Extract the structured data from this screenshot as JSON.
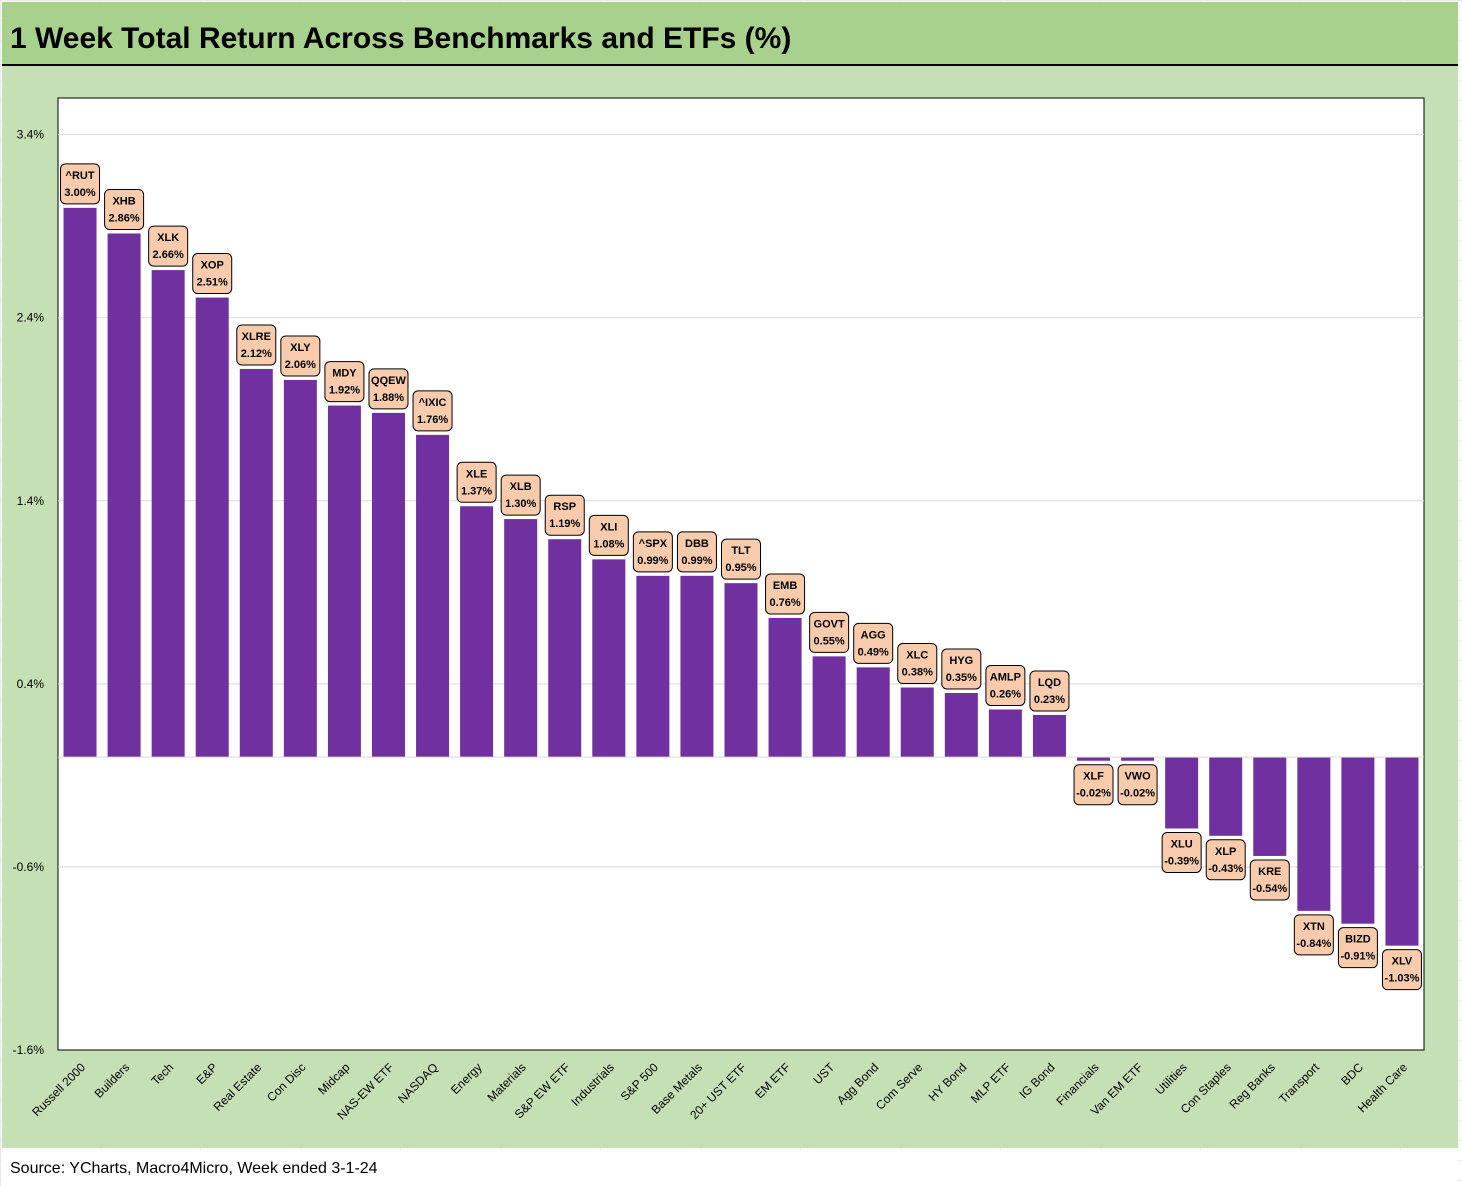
{
  "header": {
    "title": "1 Week Total Return Across Benchmarks and ETFs (%)"
  },
  "footer": {
    "source": "Source: YCharts, Macro4Micro, Week ended 3-1-24"
  },
  "colors": {
    "bar": "#7030a0",
    "label_fill": "#f8cbad",
    "panel": "#c5e0b4",
    "title_bar": "#a9d18e"
  },
  "chart_data": {
    "type": "bar",
    "title": "1 Week Total Return Across Benchmarks and ETFs (%)",
    "ylim": [
      -1.6,
      3.6
    ],
    "yticks": [
      {
        "value": 3.4,
        "label": "3.4%"
      },
      {
        "value": 2.4,
        "label": "2.4%"
      },
      {
        "value": 1.4,
        "label": "1.4%"
      },
      {
        "value": 0.4,
        "label": "0.4%"
      },
      {
        "value": -0.6,
        "label": "-0.6%"
      },
      {
        "value": -1.6,
        "label": "-1.6%"
      }
    ],
    "grid": true,
    "categories": [
      "Russell 2000",
      "Builders",
      "Tech",
      "E&P",
      "Real Estate",
      "Con Disc",
      "Midcap",
      "NAS-EW ETF",
      "NASDAQ",
      "Energy",
      "Materials",
      "S&P EW ETF",
      "Industrials",
      "S&P 500",
      "Base Metals",
      "20+ UST ETF",
      "EM ETF",
      "UST",
      "Agg Bond",
      "Com Serve",
      "HY Bond",
      "MLP ETF",
      "IG Bond",
      "Financials",
      "Van EM ETF",
      "Utilities",
      "Con Staples",
      "Reg Banks",
      "Transport",
      "BDC",
      "Health Care"
    ],
    "tickers": [
      "^RUT",
      "XHB",
      "XLK",
      "XOP",
      "XLRE",
      "XLY",
      "MDY",
      "QQEW",
      "^IXIC",
      "XLE",
      "XLB",
      "RSP",
      "XLI",
      "^SPX",
      "DBB",
      "TLT",
      "EMB",
      "GOVT",
      "AGG",
      "XLC",
      "HYG",
      "AMLP",
      "LQD",
      "XLF",
      "VWO",
      "XLU",
      "XLP",
      "KRE",
      "XTN",
      "BIZD",
      "XLV"
    ],
    "value_labels": [
      "3.00%",
      "2.86%",
      "2.66%",
      "2.51%",
      "2.12%",
      "2.06%",
      "1.92%",
      "1.88%",
      "1.76%",
      "1.37%",
      "1.30%",
      "1.19%",
      "1.08%",
      "0.99%",
      "0.99%",
      "0.95%",
      "0.76%",
      "0.55%",
      "0.49%",
      "0.38%",
      "0.35%",
      "0.26%",
      "0.23%",
      "-0.02%",
      "-0.02%",
      "-0.39%",
      "-0.43%",
      "-0.54%",
      "-0.84%",
      "-0.91%",
      "-1.03%"
    ],
    "values": [
      3.0,
      2.86,
      2.66,
      2.51,
      2.12,
      2.06,
      1.92,
      1.88,
      1.76,
      1.37,
      1.3,
      1.19,
      1.08,
      0.99,
      0.99,
      0.95,
      0.76,
      0.55,
      0.49,
      0.38,
      0.35,
      0.26,
      0.23,
      -0.02,
      -0.02,
      -0.39,
      -0.43,
      -0.54,
      -0.84,
      -0.91,
      -1.03
    ]
  }
}
